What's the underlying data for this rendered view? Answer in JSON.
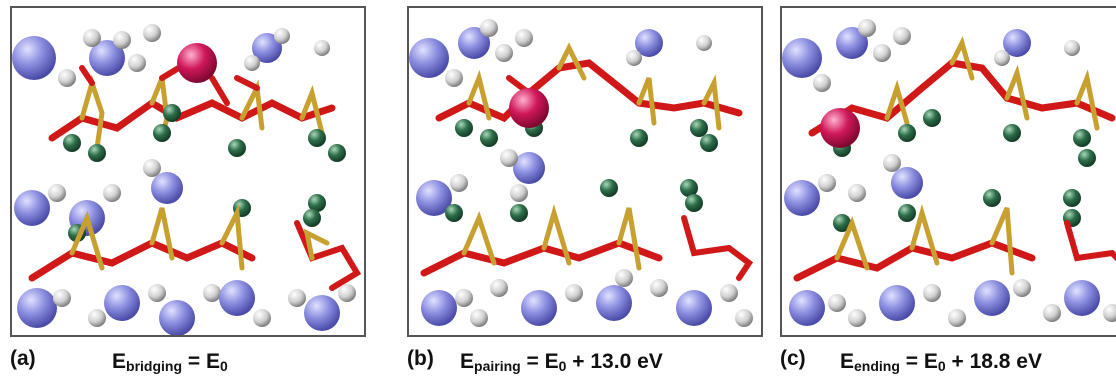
{
  "panels": [
    {
      "letter": "(a)",
      "symbol": "E",
      "subscript": "bridging",
      "equals": " = ",
      "base": "E",
      "base_sub": "0",
      "extra": ""
    },
    {
      "letter": "(b)",
      "symbol": "E",
      "subscript": "pairing",
      "equals": " = ",
      "base": "E",
      "base_sub": "0",
      "extra": " + 13.0 eV"
    },
    {
      "letter": "(c)",
      "symbol": "E",
      "subscript": "ending",
      "equals": " = ",
      "base": "E",
      "base_sub": "0",
      "extra": " + 18.8 eV"
    }
  ],
  "colors": {
    "bond_red": "#d01818",
    "phosphorus_gold": "#c8a030",
    "green_atom": "#2e6e4a",
    "blue_atom": "#8c8ee0",
    "white_atom": "#d8d8d8",
    "magenta_atom": "#d0185a",
    "frame": "#555555"
  }
}
